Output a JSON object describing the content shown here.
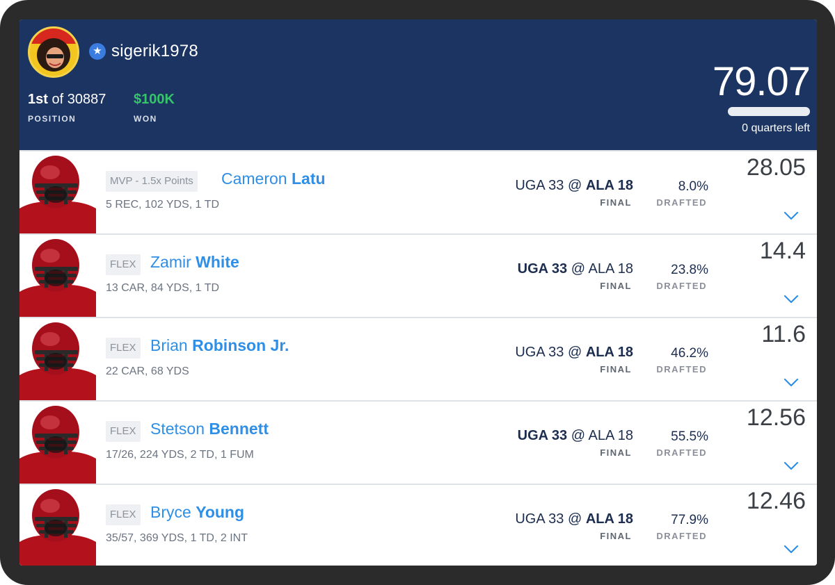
{
  "header": {
    "username": "sigerik1978",
    "position_rank": "1st",
    "position_of": "of 30887",
    "position_label": "POSITION",
    "won_value": "$100K",
    "won_label": "WON",
    "total_score": "79.07",
    "quarters_left": "0 quarters left",
    "progress_fraction": 1.0
  },
  "colors": {
    "header_bg": "#1c3461",
    "won_green": "#35c46a",
    "link_blue": "#2f8ee6",
    "helmet_red": "#b3121d"
  },
  "players": [
    {
      "slot": "MVP - 1.5x Points",
      "first_name": "Cameron",
      "last_name": "Latu",
      "stats": "5 REC, 102 YDS, 1 TD",
      "away": "UGA 33",
      "at": "@",
      "home": "ALA 18",
      "bold_team": "home",
      "game_status": "FINAL",
      "drafted_pct": "8.0%",
      "drafted_label": "DRAFTED",
      "points": "28.05"
    },
    {
      "slot": "FLEX",
      "first_name": "Zamir",
      "last_name": "White",
      "stats": "13 CAR, 84 YDS, 1 TD",
      "away": "UGA 33",
      "at": "@",
      "home": "ALA 18",
      "bold_team": "away",
      "game_status": "FINAL",
      "drafted_pct": "23.8%",
      "drafted_label": "DRAFTED",
      "points": "14.4"
    },
    {
      "slot": "FLEX",
      "first_name": "Brian",
      "last_name": "Robinson Jr.",
      "stats": "22 CAR, 68 YDS",
      "away": "UGA 33",
      "at": "@",
      "home": "ALA 18",
      "bold_team": "home",
      "game_status": "FINAL",
      "drafted_pct": "46.2%",
      "drafted_label": "DRAFTED",
      "points": "11.6"
    },
    {
      "slot": "FLEX",
      "first_name": "Stetson",
      "last_name": "Bennett",
      "stats": "17/26, 224 YDS, 2 TD, 1 FUM",
      "away": "UGA 33",
      "at": "@",
      "home": "ALA 18",
      "bold_team": "away",
      "game_status": "FINAL",
      "drafted_pct": "55.5%",
      "drafted_label": "DRAFTED",
      "points": "12.56"
    },
    {
      "slot": "FLEX",
      "first_name": "Bryce",
      "last_name": "Young",
      "stats": "35/57, 369 YDS, 1 TD, 2 INT",
      "away": "UGA 33",
      "at": "@",
      "home": "ALA 18",
      "bold_team": "home",
      "game_status": "FINAL",
      "drafted_pct": "77.9%",
      "drafted_label": "DRAFTED",
      "points": "12.46"
    }
  ]
}
